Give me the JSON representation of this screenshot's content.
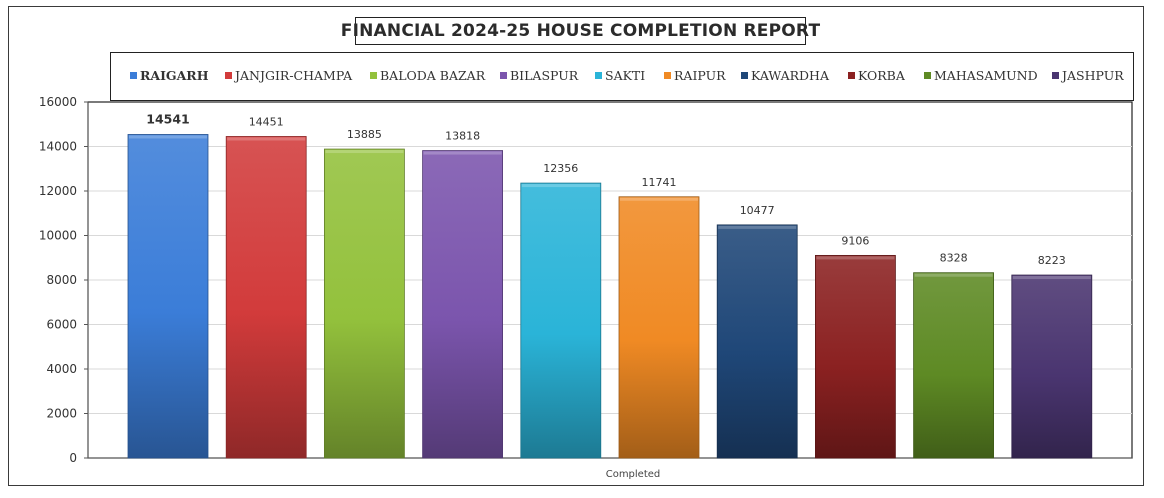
{
  "chart_data": {
    "type": "bar",
    "title": "FINANCIAL 2024-25 HOUSE COMPLETION REPORT",
    "xlabel": "Completed",
    "ylabel": "",
    "ylim": [
      0,
      16000
    ],
    "yticks": [
      0,
      2000,
      4000,
      6000,
      8000,
      10000,
      12000,
      14000,
      16000
    ],
    "grid": true,
    "legend_position": "top",
    "series": [
      {
        "name": "RAIGARH",
        "value": 14541,
        "color": "#3b7dd8",
        "label_bold": true
      },
      {
        "name": "JANJGIR-CHAMPA",
        "value": 14451,
        "color": "#d23b3b"
      },
      {
        "name": "BALODA BAZAR",
        "value": 13885,
        "color": "#93c13c"
      },
      {
        "name": "BILASPUR",
        "value": 13818,
        "color": "#7b55ad"
      },
      {
        "name": "SAKTI",
        "value": 12356,
        "color": "#2ab4d8"
      },
      {
        "name": "RAIPUR",
        "value": 11741,
        "color": "#f08a24"
      },
      {
        "name": "KAWARDHA",
        "value": 10477,
        "color": "#1f4778"
      },
      {
        "name": "KORBA",
        "value": 9106,
        "color": "#8b2121"
      },
      {
        "name": "MAHASAMUND",
        "value": 8328,
        "color": "#5e8a24"
      },
      {
        "name": "JASHPUR",
        "value": 8223,
        "color": "#4a3570"
      }
    ]
  }
}
